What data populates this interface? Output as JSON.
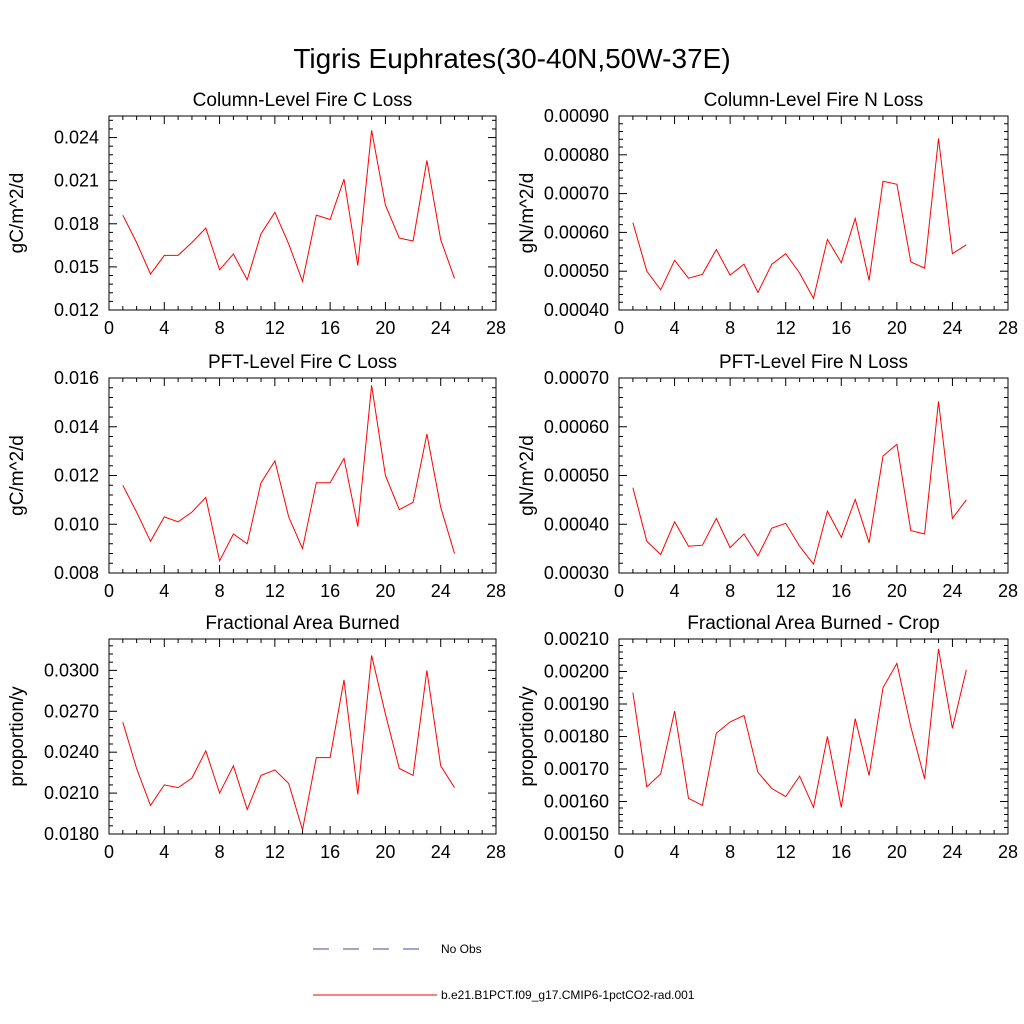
{
  "figure_title": "Tigris Euphrates(30-40N,50W-37E)",
  "colors": {
    "model_line": "#ff0000",
    "obs_line": "#4a4aa0",
    "axis": "#000000"
  },
  "legend": [
    {
      "label": "No Obs",
      "style": "dashed",
      "color": "#4a4aa0"
    },
    {
      "label": "b.e21.B1PCT.f09_g17.CMIP6-1pctCO2-rad.001",
      "style": "solid",
      "color": "#ff0000"
    }
  ],
  "chart_data": [
    {
      "type": "line",
      "title": "Column-Level Fire C Loss",
      "ylabel": "gC/m^2/d",
      "xlim": [
        0,
        28
      ],
      "ylim": [
        0.012,
        0.0255
      ],
      "xticks": [
        0,
        4,
        8,
        12,
        16,
        20,
        24,
        28
      ],
      "xtick_labels": [
        "0",
        "4",
        "8",
        "12",
        "16",
        "20",
        "24",
        "28"
      ],
      "yticks": [
        0.012,
        0.015,
        0.018,
        0.021,
        0.024
      ],
      "ytick_labels": [
        "0.012",
        "0.015",
        "0.018",
        "0.021",
        "0.024"
      ],
      "series": [
        {
          "name": "b.e21.B1PCT.f09_g17.CMIP6-1pctCO2-rad.001",
          "x": [
            1,
            2,
            3,
            4,
            5,
            6,
            7,
            8,
            9,
            10,
            11,
            12,
            13,
            14,
            15,
            16,
            17,
            18,
            19,
            20,
            21,
            22,
            23,
            24,
            25
          ],
          "y": [
            0.0186,
            0.0167,
            0.0145,
            0.0158,
            0.0158,
            0.0167,
            0.0177,
            0.0148,
            0.0159,
            0.0141,
            0.0173,
            0.0188,
            0.0166,
            0.014,
            0.0186,
            0.0183,
            0.0211,
            0.0151,
            0.0245,
            0.0193,
            0.017,
            0.0168,
            0.0224,
            0.0169,
            0.0142
          ]
        }
      ]
    },
    {
      "type": "line",
      "title": "Column-Level Fire N Loss",
      "ylabel": "gN/m^2/d",
      "xlim": [
        0,
        28
      ],
      "ylim": [
        0.0004,
        0.0009
      ],
      "xticks": [
        0,
        4,
        8,
        12,
        16,
        20,
        24,
        28
      ],
      "xtick_labels": [
        "0",
        "4",
        "8",
        "12",
        "16",
        "20",
        "24",
        "28"
      ],
      "yticks": [
        0.0004,
        0.0005,
        0.0006,
        0.0007,
        0.0008,
        0.0009
      ],
      "ytick_labels": [
        "0.00040",
        "0.00050",
        "0.00060",
        "0.00070",
        "0.00080",
        "0.00090"
      ],
      "series": [
        {
          "name": "b.e21.B1PCT.f09_g17.CMIP6-1pctCO2-rad.001",
          "x": [
            1,
            2,
            3,
            4,
            5,
            6,
            7,
            8,
            9,
            10,
            11,
            12,
            13,
            14,
            15,
            16,
            17,
            18,
            19,
            20,
            21,
            22,
            23,
            24,
            25
          ],
          "y": [
            0.000625,
            0.0005,
            0.000452,
            0.000528,
            0.000482,
            0.000492,
            0.000556,
            0.00049,
            0.000518,
            0.000445,
            0.000518,
            0.000545,
            0.000495,
            0.00043,
            0.000582,
            0.000522,
            0.000636,
            0.000476,
            0.000732,
            0.000724,
            0.000524,
            0.000508,
            0.000842,
            0.000545,
            0.000568
          ]
        }
      ]
    },
    {
      "type": "line",
      "title": "PFT-Level Fire C Loss",
      "ylabel": "gC/m^2/d",
      "xlim": [
        0,
        28
      ],
      "ylim": [
        0.008,
        0.016
      ],
      "xticks": [
        0,
        4,
        8,
        12,
        16,
        20,
        24,
        28
      ],
      "xtick_labels": [
        "0",
        "4",
        "8",
        "12",
        "16",
        "20",
        "24",
        "28"
      ],
      "yticks": [
        0.008,
        0.01,
        0.012,
        0.014,
        0.016
      ],
      "ytick_labels": [
        "0.008",
        "0.010",
        "0.012",
        "0.014",
        "0.016"
      ],
      "series": [
        {
          "name": "b.e21.B1PCT.f09_g17.CMIP6-1pctCO2-rad.001",
          "x": [
            1,
            2,
            3,
            4,
            5,
            6,
            7,
            8,
            9,
            10,
            11,
            12,
            13,
            14,
            15,
            16,
            17,
            18,
            19,
            20,
            21,
            22,
            23,
            24,
            25
          ],
          "y": [
            0.0116,
            0.0105,
            0.0093,
            0.0103,
            0.0101,
            0.0105,
            0.0111,
            0.0085,
            0.0096,
            0.0092,
            0.0117,
            0.0126,
            0.0103,
            0.009,
            0.0117,
            0.0117,
            0.0127,
            0.0099,
            0.0157,
            0.012,
            0.0106,
            0.0109,
            0.0137,
            0.0107,
            0.0088
          ]
        }
      ]
    },
    {
      "type": "line",
      "title": "PFT-Level Fire N Loss",
      "ylabel": "gN/m^2/d",
      "xlim": [
        0,
        28
      ],
      "ylim": [
        0.0003,
        0.0007
      ],
      "xticks": [
        0,
        4,
        8,
        12,
        16,
        20,
        24,
        28
      ],
      "xtick_labels": [
        "0",
        "4",
        "8",
        "12",
        "16",
        "20",
        "24",
        "28"
      ],
      "yticks": [
        0.0003,
        0.0004,
        0.0005,
        0.0006,
        0.0007
      ],
      "ytick_labels": [
        "0.00030",
        "0.00040",
        "0.00050",
        "0.00060",
        "0.00070"
      ],
      "series": [
        {
          "name": "b.e21.B1PCT.f09_g17.CMIP6-1pctCO2-rad.001",
          "x": [
            1,
            2,
            3,
            4,
            5,
            6,
            7,
            8,
            9,
            10,
            11,
            12,
            13,
            14,
            15,
            16,
            17,
            18,
            19,
            20,
            21,
            22,
            23,
            24,
            25
          ],
          "y": [
            0.000475,
            0.000365,
            0.000338,
            0.000405,
            0.000355,
            0.000357,
            0.000412,
            0.000352,
            0.00038,
            0.000335,
            0.000392,
            0.000402,
            0.000355,
            0.000318,
            0.000427,
            0.000373,
            0.000451,
            0.000362,
            0.00054,
            0.000564,
            0.000387,
            0.00038,
            0.000652,
            0.000412,
            0.00045
          ]
        }
      ]
    },
    {
      "type": "line",
      "title": "Fractional Area Burned",
      "ylabel": "proportion/y",
      "xlim": [
        0,
        28
      ],
      "ylim": [
        0.018,
        0.0323
      ],
      "xticks": [
        0,
        4,
        8,
        12,
        16,
        20,
        24,
        28
      ],
      "xtick_labels": [
        "0",
        "4",
        "8",
        "12",
        "16",
        "20",
        "24",
        "28"
      ],
      "yticks": [
        0.018,
        0.021,
        0.024,
        0.027,
        0.03
      ],
      "ytick_labels": [
        "0.0180",
        "0.0210",
        "0.0240",
        "0.0270",
        "0.0300"
      ],
      "series": [
        {
          "name": "b.e21.B1PCT.f09_g17.CMIP6-1pctCO2-rad.001",
          "x": [
            1,
            2,
            3,
            4,
            5,
            6,
            7,
            8,
            9,
            10,
            11,
            12,
            13,
            14,
            15,
            16,
            17,
            18,
            19,
            20,
            21,
            22,
            23,
            24,
            25
          ],
          "y": [
            0.0262,
            0.0228,
            0.0201,
            0.0216,
            0.0214,
            0.0221,
            0.0241,
            0.021,
            0.023,
            0.0198,
            0.0223,
            0.0227,
            0.0217,
            0.0183,
            0.0236,
            0.0236,
            0.0293,
            0.0209,
            0.0311,
            0.0268,
            0.0228,
            0.0223,
            0.03,
            0.023,
            0.0214
          ]
        }
      ]
    },
    {
      "type": "line",
      "title": "Fractional Area Burned - Crop",
      "ylabel": "proportion/y",
      "xlim": [
        0,
        28
      ],
      "ylim": [
        0.0015,
        0.0021
      ],
      "xticks": [
        0,
        4,
        8,
        12,
        16,
        20,
        24,
        28
      ],
      "xtick_labels": [
        "0",
        "4",
        "8",
        "12",
        "16",
        "20",
        "24",
        "28"
      ],
      "yticks": [
        0.0015,
        0.0016,
        0.0017,
        0.0018,
        0.0019,
        0.002,
        0.0021
      ],
      "ytick_labels": [
        "0.00150",
        "0.00160",
        "0.00170",
        "0.00180",
        "0.00190",
        "0.00200",
        "0.00210"
      ],
      "series": [
        {
          "name": "b.e21.B1PCT.f09_g17.CMIP6-1pctCO2-rad.001",
          "x": [
            1,
            2,
            3,
            4,
            5,
            6,
            7,
            8,
            9,
            10,
            11,
            12,
            13,
            14,
            15,
            16,
            17,
            18,
            19,
            20,
            21,
            22,
            23,
            24,
            25
          ],
          "y": [
            0.001935,
            0.001645,
            0.001685,
            0.001878,
            0.00161,
            0.001588,
            0.00181,
            0.001845,
            0.001865,
            0.00169,
            0.00164,
            0.001615,
            0.001678,
            0.001582,
            0.0018,
            0.001582,
            0.001855,
            0.00168,
            0.00195,
            0.002025,
            0.00183,
            0.00167,
            0.00207,
            0.001825,
            0.002005
          ]
        }
      ]
    }
  ]
}
